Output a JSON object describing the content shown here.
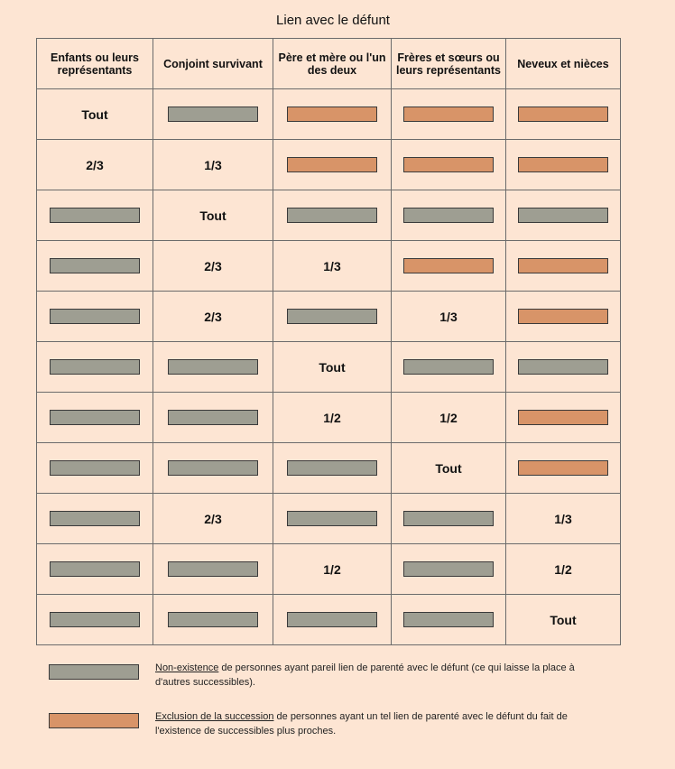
{
  "title": "Lien avec le défunt",
  "colors": {
    "page_bg": "#fde5d3",
    "non_existence": "#9e9e92",
    "exclusion": "#d89468"
  },
  "headers": [
    "Enfants ou leurs représentants",
    "Conjoint survivant",
    "Père et mère ou l'un des deux",
    "Frères et sœurs ou leurs représentants",
    "Neveux et nièces"
  ],
  "rows": [
    [
      "Tout",
      "gray",
      "orange",
      "orange",
      "orange"
    ],
    [
      "2/3",
      "1/3",
      "orange",
      "orange",
      "orange"
    ],
    [
      "gray",
      "Tout",
      "gray",
      "gray",
      "gray"
    ],
    [
      "gray",
      "2/3",
      "1/3",
      "orange",
      "orange"
    ],
    [
      "gray",
      "2/3",
      "gray",
      "1/3",
      "orange"
    ],
    [
      "gray",
      "gray",
      "Tout",
      "gray",
      "gray"
    ],
    [
      "gray",
      "gray",
      "1/2",
      "1/2",
      "orange"
    ],
    [
      "gray",
      "gray",
      "gray",
      "Tout",
      "orange"
    ],
    [
      "gray",
      "2/3",
      "gray",
      "gray",
      "1/3"
    ],
    [
      "gray",
      "gray",
      "1/2",
      "gray",
      "1/2"
    ],
    [
      "gray",
      "gray",
      "gray",
      "gray",
      "Tout"
    ]
  ],
  "legend": {
    "non_existence": {
      "term": "Non-existence",
      "text": " de personnes ayant pareil lien de parenté avec le défunt (ce qui laisse la place à d'autres successibles)."
    },
    "exclusion": {
      "term": "Exclusion de la succession",
      "text": " de personnes ayant un tel lien de parenté avec le défunt du fait de l'existence de successibles plus proches."
    }
  }
}
